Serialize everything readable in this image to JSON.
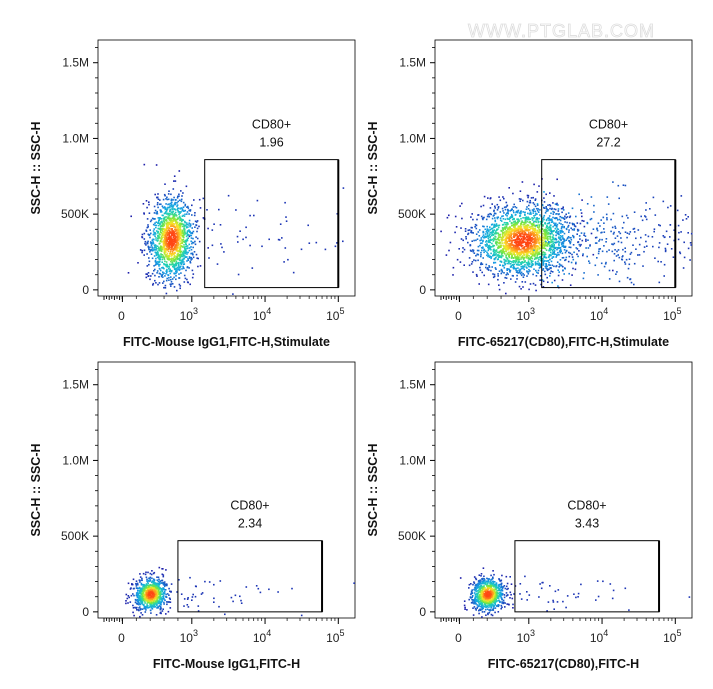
{
  "watermark": "WWW.PTGLAB.COM",
  "colors": {
    "axis": "#000000",
    "gate": "#000000",
    "density_low": "#1a1aa8",
    "density_mid": "#1fd3c7",
    "density_high": "#ff4a1a"
  },
  "chart_data": [
    {
      "type": "scatter",
      "title": "",
      "xlabel": "FITC-Mouse IgG1,FITC-H,Stimulate",
      "ylabel": "SSC-H :: SSC-H",
      "xscale": "biexponential",
      "xticks": [
        "0",
        "10^3",
        "10^4",
        "10^5"
      ],
      "yticks": [
        "0",
        "500K",
        "1.0M",
        "1.5M"
      ],
      "ylim": [
        0,
        1650000
      ],
      "gate": {
        "name": "CD80+",
        "percent": "1.96",
        "x_range": [
          1500,
          100000
        ],
        "y_range": [
          15000,
          860000
        ]
      },
      "population": {
        "x_center": 700,
        "y_center": 340000,
        "spread": "compact"
      }
    },
    {
      "type": "scatter",
      "title": "",
      "xlabel": "FITC-65217(CD80),FITC-H,Stimulate",
      "ylabel": "SSC-H :: SSC-H",
      "xscale": "biexponential",
      "xticks": [
        "0",
        "10^3",
        "10^4",
        "10^5"
      ],
      "yticks": [
        "0",
        "500K",
        "1.0M",
        "1.5M"
      ],
      "ylim": [
        0,
        1650000
      ],
      "gate": {
        "name": "CD80+",
        "percent": "27.2",
        "x_range": [
          1500,
          100000
        ],
        "y_range": [
          15000,
          860000
        ]
      },
      "population": {
        "x_center": 900,
        "y_center": 330000,
        "spread": "wide"
      }
    },
    {
      "type": "scatter",
      "title": "",
      "xlabel": "FITC-Mouse IgG1,FITC-H",
      "ylabel": "SSC-H :: SSC-H",
      "xscale": "biexponential",
      "xticks": [
        "0",
        "10^3",
        "10^4",
        "10^5"
      ],
      "yticks": [
        "0",
        "500K",
        "1.0M",
        "1.5M"
      ],
      "ylim": [
        0,
        1650000
      ],
      "gate": {
        "name": "CD80+",
        "percent": "2.34",
        "x_range": [
          800,
          60000
        ],
        "y_range": [
          0,
          470000
        ]
      },
      "population": {
        "x_center": 400,
        "y_center": 120000,
        "spread": "tight"
      }
    },
    {
      "type": "scatter",
      "title": "",
      "xlabel": "FITC-65217(CD80),FITC-H",
      "ylabel": "SSC-H :: SSC-H",
      "xscale": "biexponential",
      "xticks": [
        "0",
        "10^3",
        "10^4",
        "10^5"
      ],
      "yticks": [
        "0",
        "500K",
        "1.0M",
        "1.5M"
      ],
      "ylim": [
        0,
        1650000
      ],
      "gate": {
        "name": "CD80+",
        "percent": "3.43",
        "x_range": [
          800,
          60000
        ],
        "y_range": [
          0,
          470000
        ]
      },
      "population": {
        "x_center": 400,
        "y_center": 120000,
        "spread": "tight"
      }
    }
  ]
}
